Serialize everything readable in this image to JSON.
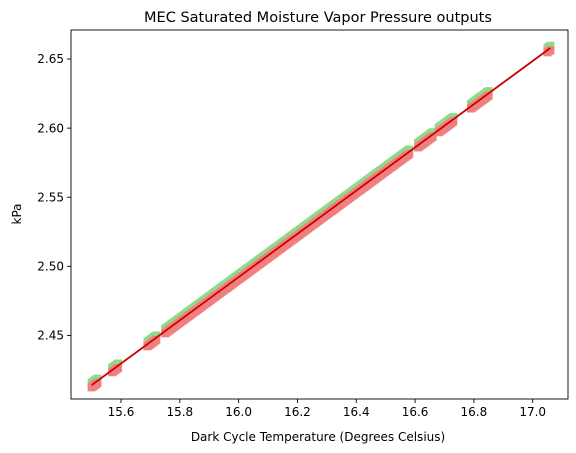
{
  "chart_data": {
    "type": "scatter",
    "title": "MEC Saturated Moisture Vapor Pressure outputs",
    "xlabel": "Dark Cycle Temperature (Degrees Celsius)",
    "ylabel": "kPa",
    "xlim": [
      15.43,
      17.12
    ],
    "ylim": [
      2.404,
      2.671
    ],
    "xticks": [
      15.6,
      15.8,
      16.0,
      16.2,
      16.4,
      16.6,
      16.8,
      17.0
    ],
    "xtick_labels": [
      "15.6",
      "15.8",
      "16.0",
      "16.2",
      "16.4",
      "16.6",
      "16.8",
      "17.0"
    ],
    "yticks": [
      2.45,
      2.5,
      2.55,
      2.6,
      2.65
    ],
    "ytick_labels": [
      "2.45",
      "2.50",
      "2.55",
      "2.60",
      "2.65"
    ],
    "grid": false,
    "series": [
      {
        "marker": "square",
        "color": "#90d88a",
        "x_range": [
          15.5,
          17.06
        ],
        "clusters": [
          [
            15.5,
            15.52
          ],
          [
            15.57,
            15.59
          ],
          [
            15.69,
            15.72
          ],
          [
            15.75,
            15.83
          ],
          [
            15.83,
            15.92
          ],
          [
            15.92,
            16.02
          ],
          [
            16.02,
            16.12
          ],
          [
            16.12,
            16.22
          ],
          [
            16.22,
            16.32
          ],
          [
            16.32,
            16.42
          ],
          [
            16.42,
            16.52
          ],
          [
            16.52,
            16.58
          ],
          [
            16.61,
            16.66
          ],
          [
            16.68,
            16.73
          ],
          [
            16.79,
            16.85
          ],
          [
            17.05,
            17.06
          ]
        ]
      },
      {
        "marker": "square",
        "color": "#f08080",
        "x_range": [
          15.5,
          17.06
        ],
        "clusters": [
          [
            15.5,
            15.52
          ],
          [
            15.57,
            15.59
          ],
          [
            15.69,
            15.72
          ],
          [
            15.75,
            15.83
          ],
          [
            15.83,
            15.92
          ],
          [
            15.92,
            16.02
          ],
          [
            16.02,
            16.12
          ],
          [
            16.12,
            16.22
          ],
          [
            16.22,
            16.32
          ],
          [
            16.32,
            16.42
          ],
          [
            16.42,
            16.52
          ],
          [
            16.52,
            16.58
          ],
          [
            16.61,
            16.66
          ],
          [
            16.68,
            16.73
          ],
          [
            16.79,
            16.85
          ],
          [
            17.05,
            17.06
          ]
        ]
      }
    ],
    "fit_line": {
      "type": "line",
      "color": "#cc0000",
      "points": [
        [
          15.5,
          2.414
        ],
        [
          17.06,
          2.658
        ]
      ]
    },
    "relationship": "y = 2.414 + 0.15641 * (x - 15.5)"
  }
}
